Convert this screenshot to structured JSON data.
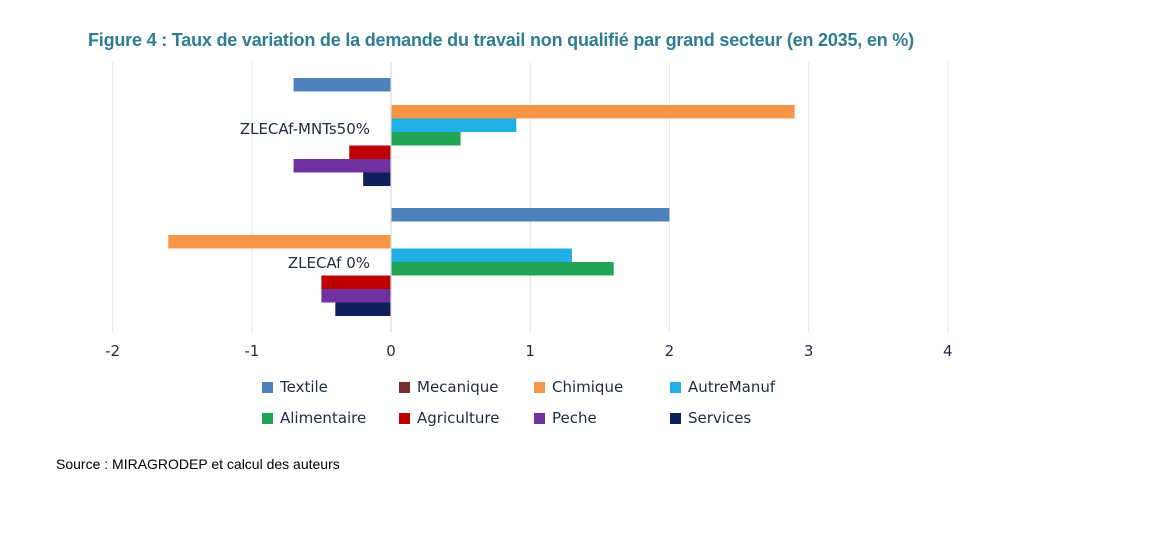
{
  "title": "Figure 4 : Taux de variation de la demande du travail non qualifié par grand secteur (en 2035, en %)",
  "source": "Source : MIRAGRODEP et calcul des auteurs",
  "chart_data": {
    "type": "bar",
    "orientation": "horizontal",
    "categories": [
      "ZLECAf-MNTs50%",
      "ZLECAf 0%"
    ],
    "series": [
      {
        "name": "Textile",
        "color": "#4f81bd",
        "values": [
          -0.7,
          2.0
        ]
      },
      {
        "name": "Mecanique",
        "color": "#7b2c2c",
        "values": [
          0,
          0
        ]
      },
      {
        "name": "Chimique",
        "color": "#f79646",
        "values": [
          2.9,
          -1.6
        ]
      },
      {
        "name": "AutreManuf",
        "color": "#1fb0e8",
        "values": [
          0.9,
          1.3
        ]
      },
      {
        "name": "Alimentaire",
        "color": "#21a555",
        "values": [
          0.5,
          1.6
        ]
      },
      {
        "name": "Agriculture",
        "color": "#c00000",
        "values": [
          -0.3,
          -0.5
        ]
      },
      {
        "name": "Peche",
        "color": "#7030a0",
        "values": [
          -0.7,
          -0.5
        ]
      },
      {
        "name": "Services",
        "color": "#0f1f5c",
        "values": [
          -0.2,
          -0.4
        ]
      }
    ],
    "xlim": [
      -2,
      4
    ],
    "xticks": [
      "-2",
      "-1",
      "0",
      "1",
      "2",
      "3",
      "4"
    ],
    "grid": true,
    "legend_position": "bottom",
    "xlabel": "",
    "ylabel": ""
  }
}
